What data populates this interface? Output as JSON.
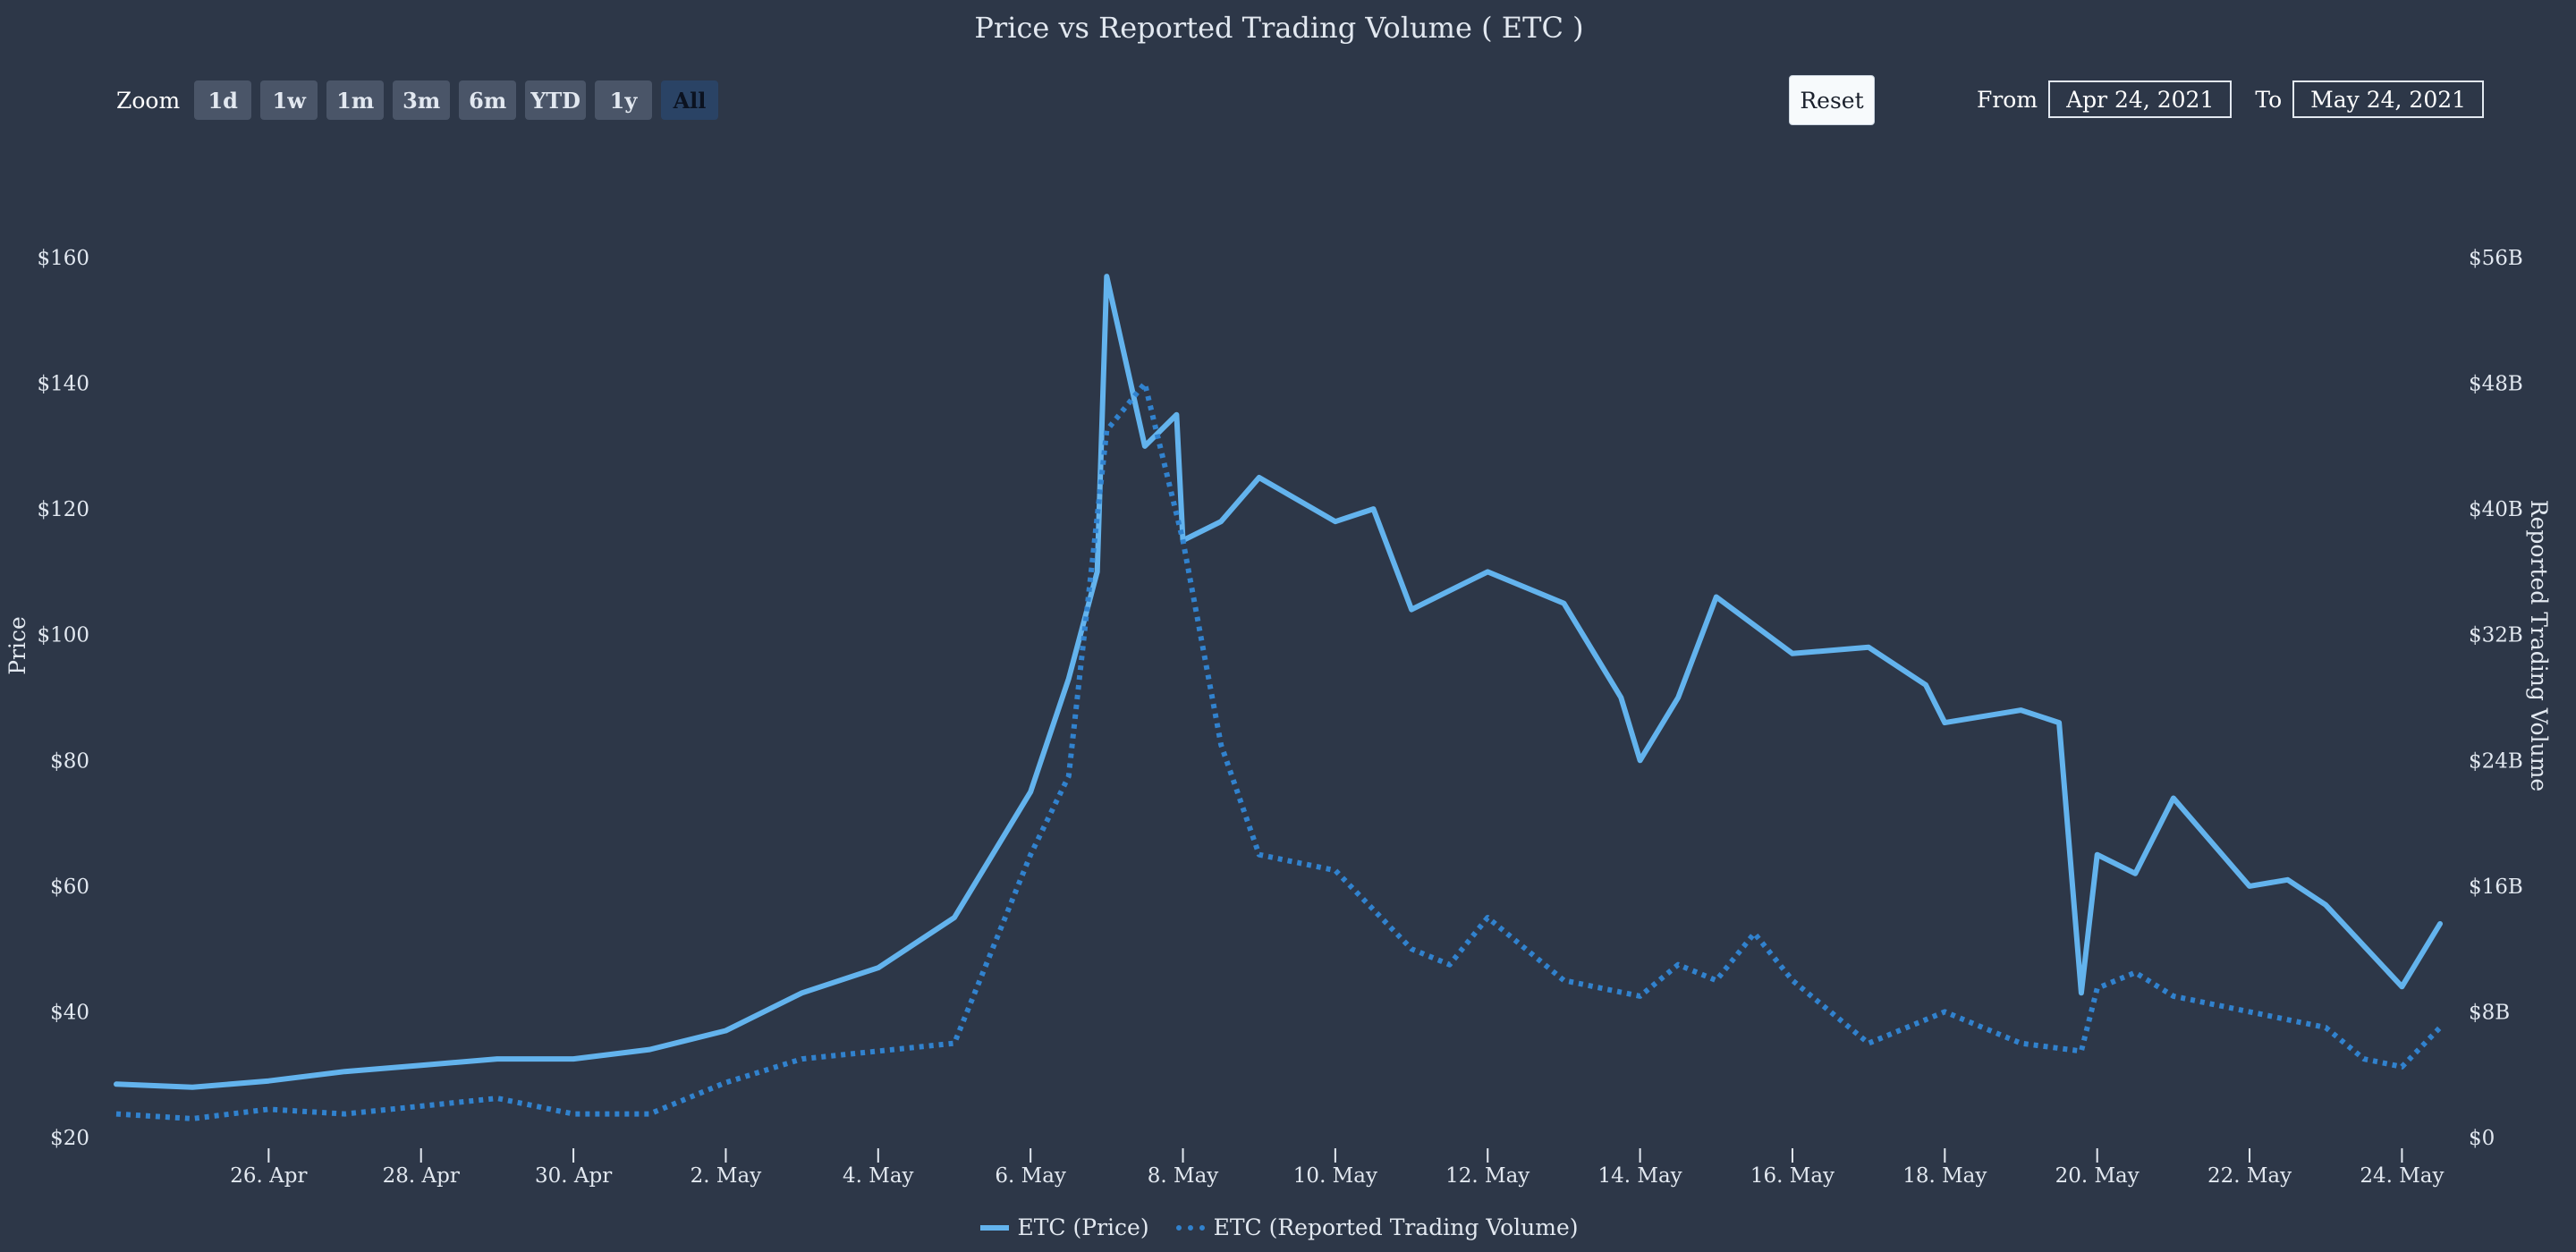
{
  "chart_data": {
    "type": "line",
    "title": "Price vs Reported Trading Volume ( ETC )",
    "left_axis": {
      "label": "Price",
      "ticks": [
        "$20",
        "$40",
        "$60",
        "$80",
        "$100",
        "$120",
        "$140",
        "$160"
      ],
      "range": [
        20,
        160
      ]
    },
    "right_axis": {
      "label": "Reported Trading Volume",
      "ticks": [
        "$0",
        "$8B",
        "$16B",
        "$24B",
        "$32B",
        "$40B",
        "$48B",
        "$56B"
      ],
      "range": [
        0,
        56
      ]
    },
    "x_axis": {
      "ticks": [
        "26. Apr",
        "28. Apr",
        "30. Apr",
        "2. May",
        "4. May",
        "6. May",
        "8. May",
        "10. May",
        "12. May",
        "14. May",
        "16. May",
        "18. May",
        "20. May",
        "22. May",
        "24. May"
      ]
    },
    "legend_position": "bottom-center",
    "grid": false,
    "series": [
      {
        "name": "ETC (Price)",
        "color": "#63b3ed",
        "style": "solid",
        "axis": "left",
        "x": [
          "2021-04-24",
          "2021-04-25",
          "2021-04-26",
          "2021-04-27",
          "2021-04-28",
          "2021-04-29",
          "2021-04-30",
          "2021-05-01",
          "2021-05-02",
          "2021-05-03",
          "2021-05-04",
          "2021-05-05",
          "2021-05-06",
          "2021-05-06T12",
          "2021-05-06T21",
          "2021-05-07",
          "2021-05-07T12",
          "2021-05-07T22",
          "2021-05-08",
          "2021-05-08T12",
          "2021-05-09",
          "2021-05-10",
          "2021-05-10T12",
          "2021-05-11",
          "2021-05-12",
          "2021-05-13",
          "2021-05-13T18",
          "2021-05-14",
          "2021-05-14T12",
          "2021-05-15",
          "2021-05-16",
          "2021-05-17",
          "2021-05-17T18",
          "2021-05-18",
          "2021-05-19",
          "2021-05-19T12",
          "2021-05-19T19",
          "2021-05-20",
          "2021-05-20T12",
          "2021-05-21",
          "2021-05-22",
          "2021-05-22T12",
          "2021-05-23",
          "2021-05-24",
          "2021-05-24T12"
        ],
        "values": [
          28.5,
          28,
          29,
          30.5,
          31.5,
          32.5,
          32.5,
          34,
          37,
          43,
          47,
          55,
          75,
          93,
          110,
          157,
          130,
          135,
          115,
          118,
          125,
          118,
          120,
          104,
          110,
          105,
          90,
          80,
          90,
          106,
          97,
          98,
          92,
          86,
          88,
          86,
          43,
          65,
          62,
          74,
          60,
          61,
          57,
          44,
          54
        ]
      },
      {
        "name": "ETC (Reported Trading Volume)",
        "color": "#3182ce",
        "style": "dotted",
        "axis": "right",
        "x": [
          "2021-04-24",
          "2021-04-25",
          "2021-04-26",
          "2021-04-27",
          "2021-04-28",
          "2021-04-29",
          "2021-04-30",
          "2021-05-01",
          "2021-05-02",
          "2021-05-03",
          "2021-05-04",
          "2021-05-05",
          "2021-05-05T12",
          "2021-05-06",
          "2021-05-06T12",
          "2021-05-07",
          "2021-05-07T12",
          "2021-05-08",
          "2021-05-08T12",
          "2021-05-09",
          "2021-05-10",
          "2021-05-11",
          "2021-05-11T12",
          "2021-05-12",
          "2021-05-13",
          "2021-05-14",
          "2021-05-14T12",
          "2021-05-15",
          "2021-05-15T12",
          "2021-05-16",
          "2021-05-17",
          "2021-05-18",
          "2021-05-19",
          "2021-05-19T19",
          "2021-05-20",
          "2021-05-20T12",
          "2021-05-21",
          "2021-05-22",
          "2021-05-23",
          "2021-05-23T12",
          "2021-05-24",
          "2021-05-24T12"
        ],
        "values": [
          1.5,
          1.2,
          1.8,
          1.5,
          2.0,
          2.5,
          1.5,
          1.5,
          3.5,
          5.0,
          5.5,
          6.0,
          12,
          18,
          23,
          45,
          48,
          38,
          25,
          18,
          17,
          12,
          11,
          14,
          10,
          9,
          11,
          10,
          13,
          10,
          6,
          8,
          6,
          5.5,
          9.5,
          10.5,
          9,
          8,
          7,
          5,
          4.5,
          7
        ]
      }
    ]
  },
  "toolbar": {
    "zoom_label": "Zoom",
    "zoom_buttons": [
      "1d",
      "1w",
      "1m",
      "3m",
      "6m",
      "YTD",
      "1y",
      "All"
    ],
    "active_zoom": "All",
    "reset_label": "Reset",
    "from_label": "From",
    "from_value": "Apr 24, 2021",
    "to_label": "To",
    "to_value": "May 24, 2021"
  }
}
